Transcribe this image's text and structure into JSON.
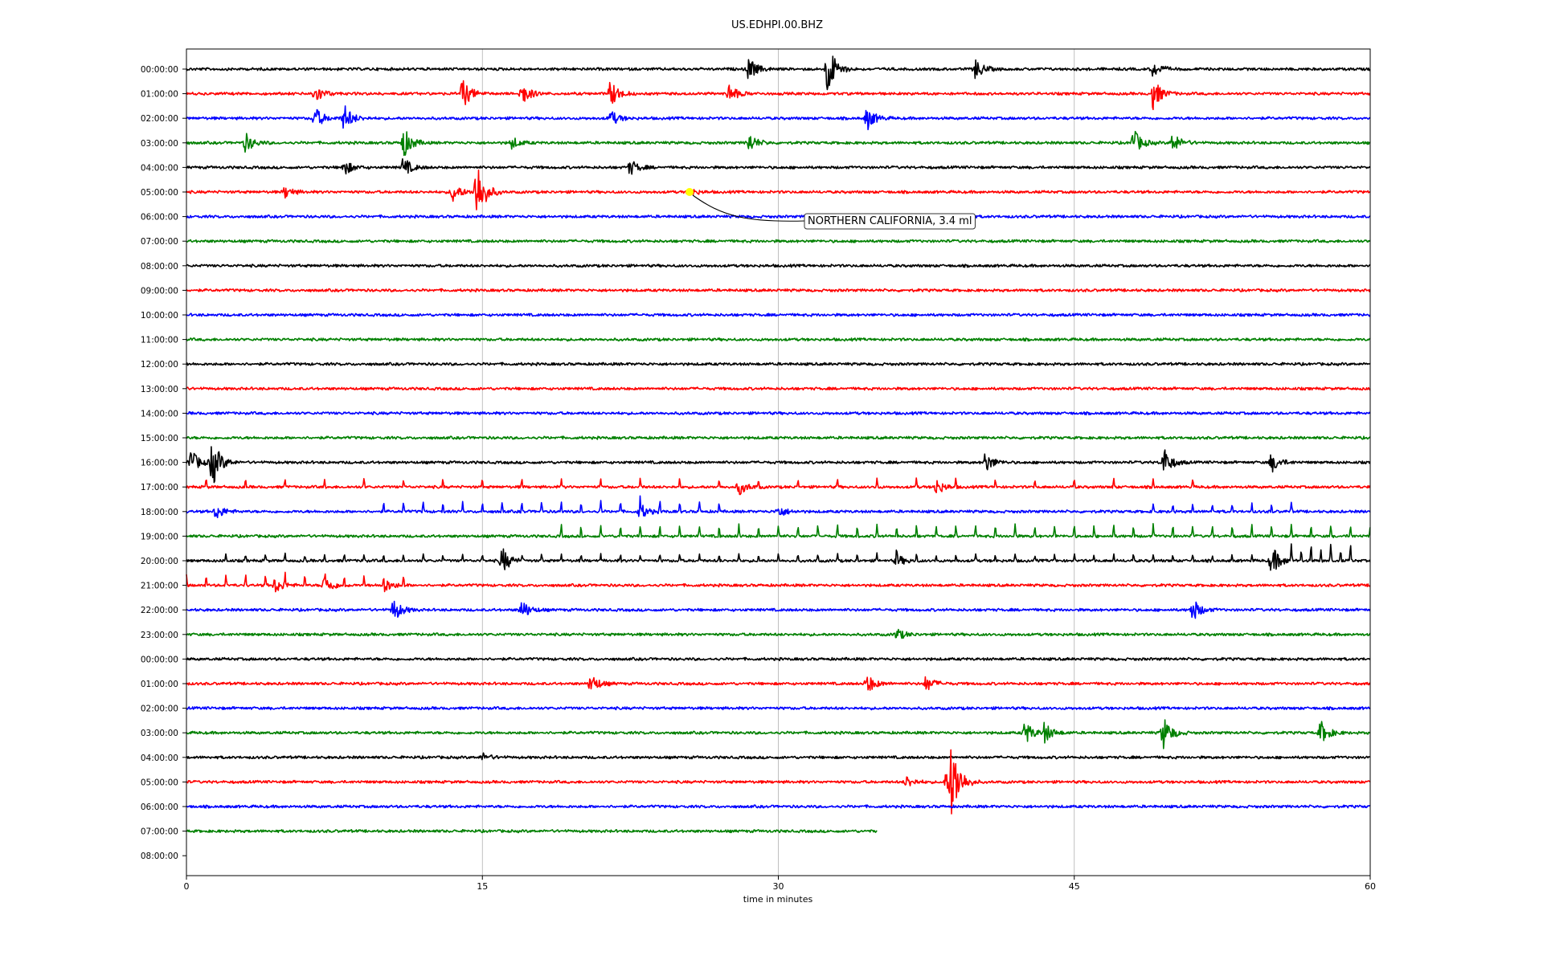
{
  "chart_data": {
    "type": "line",
    "title": "US.EDHPI.00.BHZ",
    "xlabel": "time in minutes",
    "xlim": [
      0,
      60
    ],
    "x_ticks": [
      "0",
      "15",
      "30",
      "45",
      "60"
    ],
    "x_tick_values": [
      0,
      15,
      30,
      45,
      60
    ],
    "grid": "vertical",
    "row_labels": [
      "00:00:00",
      "01:00:00",
      "02:00:00",
      "03:00:00",
      "04:00:00",
      "05:00:00",
      "06:00:00",
      "07:00:00",
      "08:00:00",
      "09:00:00",
      "10:00:00",
      "11:00:00",
      "12:00:00",
      "13:00:00",
      "14:00:00",
      "15:00:00",
      "16:00:00",
      "17:00:00",
      "18:00:00",
      "19:00:00",
      "20:00:00",
      "21:00:00",
      "22:00:00",
      "23:00:00",
      "00:00:00",
      "01:00:00",
      "02:00:00",
      "03:00:00",
      "04:00:00",
      "05:00:00",
      "06:00:00",
      "07:00:00",
      "08:00:00"
    ],
    "trace_colors": [
      "#000000",
      "#ff0000",
      "#0000ff",
      "#008000"
    ],
    "trace_end_minutes": {
      "31": 35,
      "32": 0
    },
    "events": {
      "0": [
        [
          28.5,
          0.6
        ],
        [
          32.5,
          1.4
        ],
        [
          40,
          0.5
        ],
        [
          49,
          0.4
        ]
      ],
      "1": [
        [
          6.5,
          0.5
        ],
        [
          14,
          0.8
        ],
        [
          17,
          0.6
        ],
        [
          21.5,
          0.7
        ],
        [
          27.5,
          0.5
        ],
        [
          49,
          0.8
        ]
      ],
      "2": [
        [
          6.5,
          0.6
        ],
        [
          8,
          0.7
        ],
        [
          21.5,
          0.4
        ],
        [
          34.5,
          0.6
        ]
      ],
      "3": [
        [
          3,
          0.5
        ],
        [
          11,
          0.8
        ],
        [
          16.5,
          0.3
        ],
        [
          28.5,
          0.5
        ],
        [
          48,
          0.7
        ],
        [
          50,
          0.5
        ]
      ],
      "4": [
        [
          8,
          0.4
        ],
        [
          11,
          0.5
        ],
        [
          22.5,
          0.4
        ]
      ],
      "5": [
        [
          5,
          0.3
        ],
        [
          13.5,
          0.5
        ],
        [
          14.7,
          1.8
        ],
        [
          25.5,
          0.2
        ]
      ],
      "16": [
        [
          0.2,
          0.7
        ],
        [
          1.3,
          1.3
        ],
        [
          40.5,
          0.5
        ],
        [
          49.5,
          0.8
        ],
        [
          55,
          0.5
        ]
      ],
      "17": [
        [
          28,
          0.4
        ],
        [
          38,
          0.4
        ]
      ],
      "18": [
        [
          1.5,
          0.4
        ],
        [
          23,
          0.4
        ],
        [
          30,
          0.3
        ]
      ],
      "20": [
        [
          16,
          0.7
        ],
        [
          36,
          0.3
        ],
        [
          55,
          0.8
        ]
      ],
      "21": [
        [
          4.5,
          0.4
        ],
        [
          7,
          0.5
        ],
        [
          10,
          0.4
        ]
      ],
      "22": [
        [
          10.5,
          0.6
        ],
        [
          17,
          0.5
        ],
        [
          51,
          0.6
        ]
      ],
      "23": [
        [
          36,
          0.3
        ]
      ],
      "25": [
        [
          20.5,
          0.5
        ],
        [
          34.5,
          0.5
        ],
        [
          37.5,
          0.4
        ]
      ],
      "27": [
        [
          42.5,
          0.6
        ],
        [
          43.5,
          0.5
        ],
        [
          49.5,
          0.9
        ],
        [
          57.5,
          0.6
        ]
      ],
      "28": [
        [
          15,
          0.2
        ]
      ],
      "29": [
        [
          36.5,
          0.3
        ],
        [
          38.5,
          0.5
        ],
        [
          38.8,
          2.0
        ]
      ]
    },
    "spike_trains": [
      {
        "row": 17,
        "from": 1,
        "to": 51,
        "step": 2,
        "amp": 0.45
      },
      {
        "row": 18,
        "from": 10,
        "to": 27,
        "step": 1,
        "amp": 0.55
      },
      {
        "row": 18,
        "from": 49,
        "to": 56,
        "step": 1,
        "amp": 0.45
      },
      {
        "row": 19,
        "from": 19,
        "to": 60,
        "step": 1,
        "amp": 0.6
      },
      {
        "row": 20,
        "from": 2,
        "to": 59,
        "step": 1,
        "amp": 0.35
      },
      {
        "row": 20,
        "from": 56,
        "to": 59,
        "step": 0.5,
        "amp": 0.6
      },
      {
        "row": 21,
        "from": 0,
        "to": 11,
        "step": 1,
        "amp": 0.6
      }
    ],
    "marker": {
      "row": 5,
      "minute": 25.5,
      "color": "#ffff00"
    },
    "annotation": {
      "text": "NORTHERN CALIFORNIA, 3.4 ml",
      "row": 5,
      "minute": 25.5
    }
  }
}
